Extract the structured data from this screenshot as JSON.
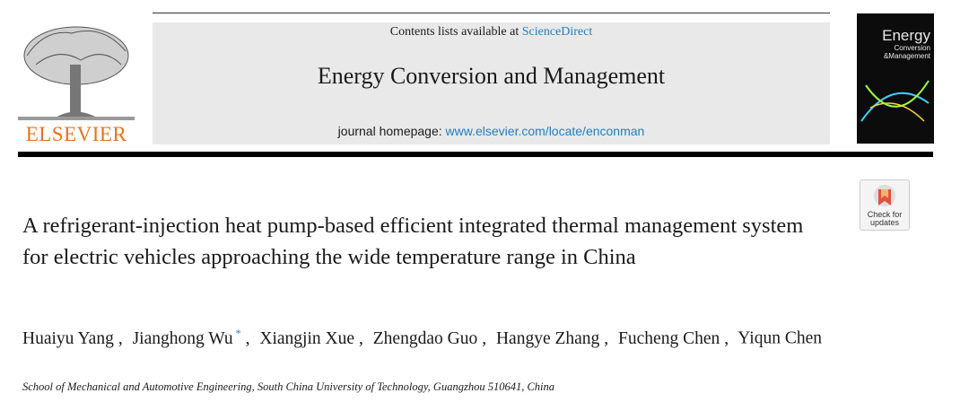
{
  "header": {
    "contents_prefix": "Contents lists available at",
    "contents_link": "ScienceDirect",
    "journal": "Energy Conversion and Management",
    "homepage_prefix": "journal homepage:",
    "homepage_link": "www.elsevier.com/locate/enconman",
    "publisher": "ELSEVIER",
    "cover": {
      "line1": "Energy",
      "line2": "Conversion",
      "line3": "&Management"
    }
  },
  "check_updates": {
    "line1": "Check for",
    "line2": "updates"
  },
  "article": {
    "title": "A refrigerant-injection heat pump-based efficient integrated thermal management system for electric vehicles approaching the wide temperature range in China",
    "separator": ",",
    "corresponding_mark": "*",
    "authors": [
      {
        "name": "Huaiyu Yang"
      },
      {
        "name": "Jianghong Wu",
        "corresponding": true
      },
      {
        "name": "Xiangjin Xue"
      },
      {
        "name": "Zhengdao Guo"
      },
      {
        "name": "Hangye Zhang"
      },
      {
        "name": "Fucheng Chen"
      },
      {
        "name": "Yiqun Chen"
      }
    ],
    "affiliation": "School of Mechanical and Automotive Engineering, South China University of Technology, Guangzhou 510641, China"
  }
}
